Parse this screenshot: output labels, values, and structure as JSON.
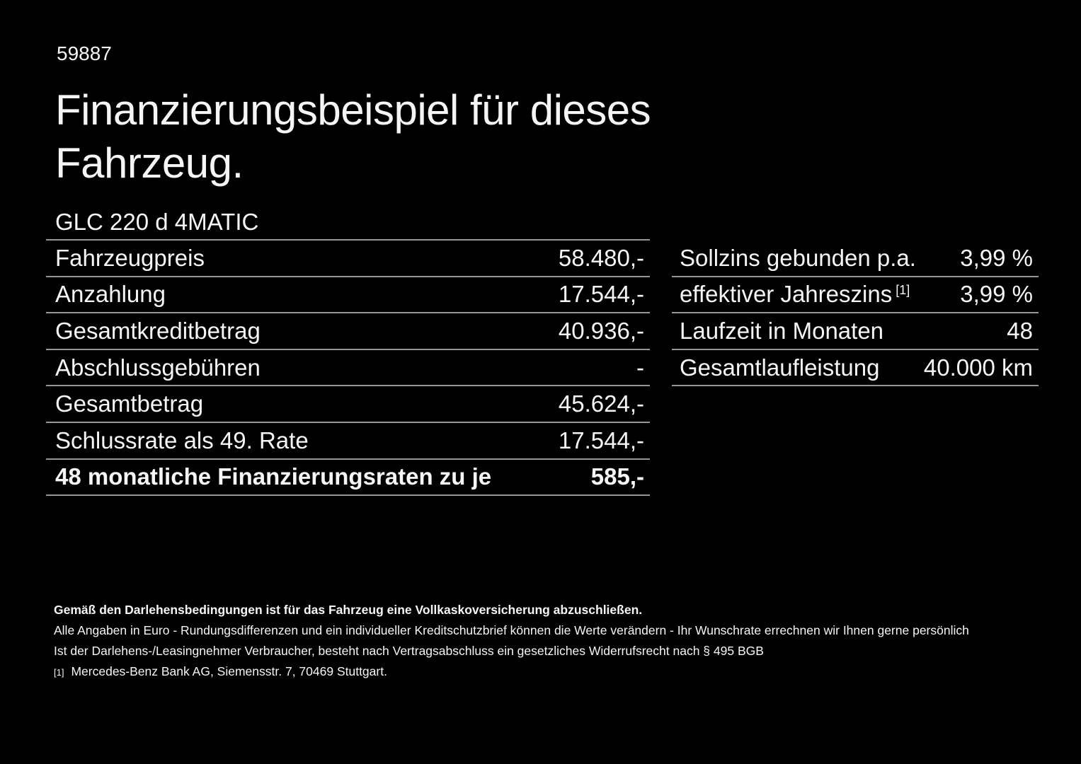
{
  "page": {
    "colors": {
      "background": "#000000",
      "text": "#f5f5f5",
      "divider": "#969696"
    }
  },
  "header": {
    "ref_number": "59887",
    "title_line1": "Finanzierungsbeispiel für dieses",
    "title_line2": "Fahrzeug.",
    "vehicle_model": "GLC 220 d 4MATIC"
  },
  "finance_table": {
    "rows": [
      {
        "label": "Fahrzeugpreis",
        "value": "58.480,-",
        "bold": false
      },
      {
        "label": "Anzahlung",
        "value": "17.544,-",
        "bold": false
      },
      {
        "label": "Gesamtkreditbetrag",
        "value": "40.936,-",
        "bold": false
      },
      {
        "label": "Abschlussgebühren",
        "value": "-",
        "bold": false
      },
      {
        "label": "Gesamtbetrag",
        "value": "45.624,-",
        "bold": false
      },
      {
        "label": "Schlussrate als 49. Rate",
        "value": "17.544,-",
        "bold": false
      },
      {
        "label": "48 monatliche Finanzierungsraten zu je",
        "value": "585,-",
        "bold": true
      }
    ]
  },
  "conditions_table": {
    "rows": [
      {
        "label": "Sollzins gebunden p.a.",
        "sup": "",
        "value": "3,99 %"
      },
      {
        "label": "effektiver Jahreszins",
        "sup": "[1]",
        "value": "3,99 %"
      },
      {
        "label": "Laufzeit in Monaten",
        "sup": "",
        "value": "48"
      },
      {
        "label": "Gesamtlaufleistung",
        "sup": "",
        "value": "40.000 km"
      }
    ]
  },
  "footer": {
    "line_bold": "Gemäß den Darlehensbedingungen ist für das Fahrzeug eine Vollkaskoversicherung abzuschließen.",
    "line2": "Alle Angaben in Euro - Rundungsdifferenzen und ein individueller Kreditschutzbrief können die Werte verändern - Ihr Wunschrate errechnen wir Ihnen gerne persönlich",
    "line3": "Ist der Darlehens-/Leasingnehmer Verbraucher, besteht nach Vertragsabschluss ein gesetzliches Widerrufsrecht nach § 495 BGB",
    "footnote_marker": "[1]",
    "footnote_text": "Mercedes-Benz Bank AG, Siemensstr. 7, 70469 Stuttgart."
  }
}
